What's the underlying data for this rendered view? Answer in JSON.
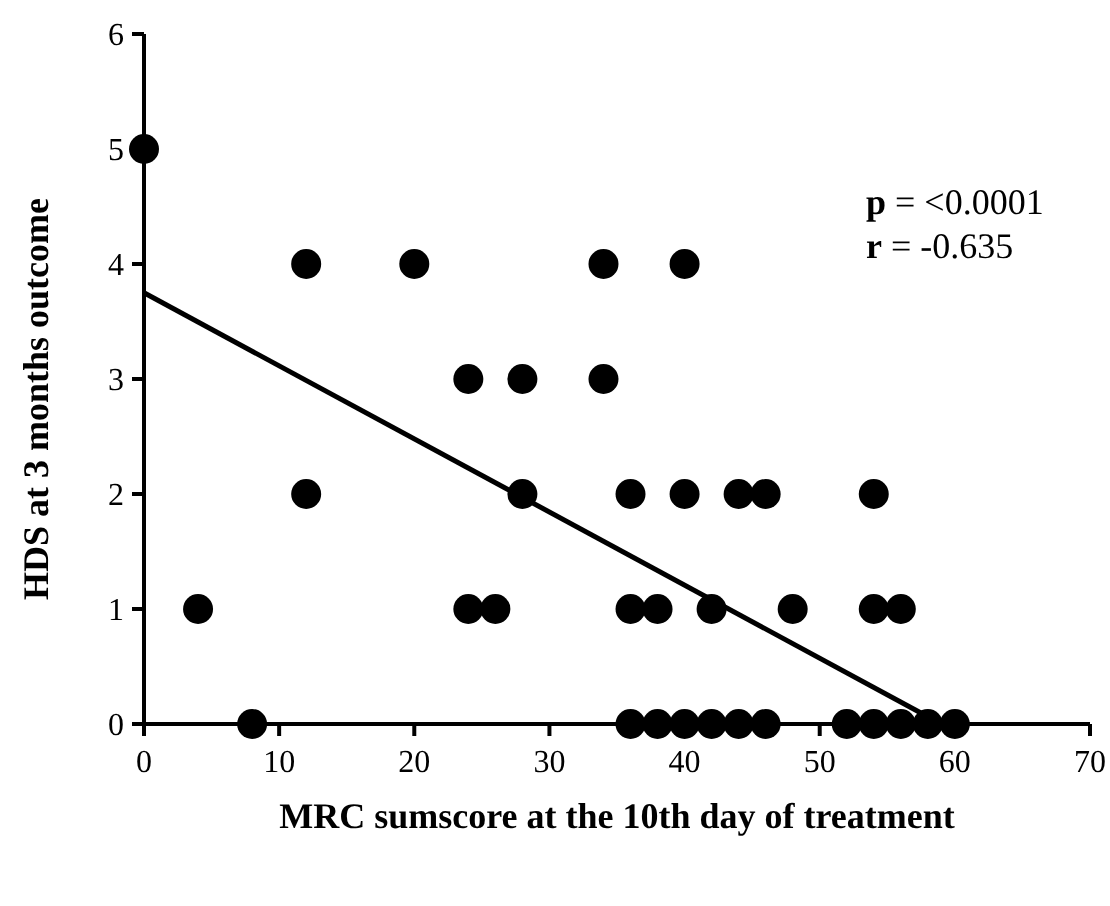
{
  "chart_data": {
    "type": "scatter",
    "xlabel": "MRC sumscore at the 10th day of treatment",
    "ylabel": "HDS at 3 months outcome",
    "xlim": [
      0,
      70
    ],
    "xticks": [
      0,
      10,
      20,
      30,
      40,
      50,
      60,
      70
    ],
    "ylim": [
      0,
      6
    ],
    "yticks": [
      0,
      1,
      2,
      3,
      4,
      5,
      6
    ],
    "grid": false,
    "annotations": [
      "p = <0.0001",
      "r = -0.635"
    ],
    "series": [
      {
        "marker": "circle",
        "color": "#000000",
        "x": [
          0,
          4,
          8,
          12,
          12,
          20,
          24,
          24,
          26,
          28,
          28,
          34,
          34,
          36,
          36,
          36,
          38,
          38,
          40,
          40,
          40,
          42,
          42,
          44,
          44,
          46,
          46,
          48,
          52,
          54,
          54,
          54,
          56,
          56,
          58,
          60
        ],
        "values": [
          5,
          1,
          0,
          4,
          2,
          4,
          3,
          1,
          1,
          3,
          2,
          4,
          3,
          2,
          1,
          0,
          1,
          0,
          4,
          2,
          0,
          1,
          0,
          2,
          0,
          2,
          0,
          1,
          0,
          2,
          1,
          0,
          1,
          0,
          0,
          0
        ]
      },
      {
        "type": "line",
        "color": "#000000",
        "x": [
          0,
          59
        ],
        "values": [
          3.75,
          0
        ]
      }
    ]
  }
}
